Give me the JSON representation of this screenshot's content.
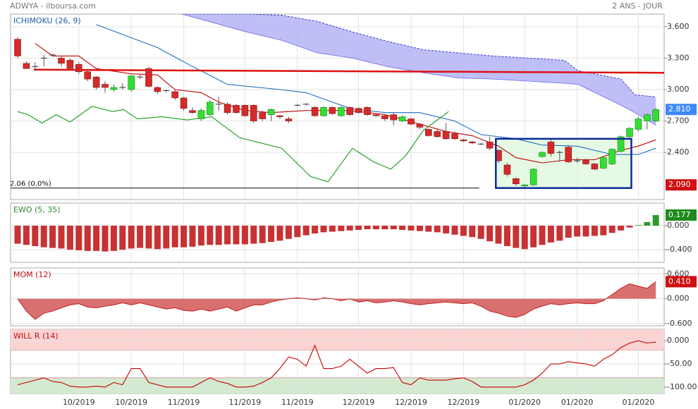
{
  "header": {
    "symbol": "ADWYA - ilboursa.com",
    "period": "2 ANS - JOUR"
  },
  "chart_data": [
    {
      "type": "candlestick",
      "title": "ICHIMOKU (26, 9)",
      "title_color": "#1f5fa8",
      "up_color": "#33dd33",
      "down_color": "#d42a2a",
      "ylim": [
        1.95,
        3.72
      ],
      "yticks": [
        {
          "value": 3.6,
          "label": "3.600"
        },
        {
          "value": 3.3,
          "label": "3.300"
        },
        {
          "value": 3.0,
          "label": "3.000"
        },
        {
          "value": 2.7,
          "label": "2.700"
        },
        {
          "value": 2.4,
          "label": "2.400"
        }
      ],
      "grid": true,
      "open": [
        3.48,
        3.25,
        3.22,
        3.3,
        3.33,
        3.3,
        3.28,
        3.24,
        3.17,
        3.12,
        3.05,
        3.0,
        3.02,
        3.0,
        3.12,
        3.2,
        3.02,
        2.99,
        2.98,
        2.92,
        2.8,
        2.72,
        2.76,
        2.86,
        2.86,
        2.85,
        2.85,
        2.85,
        2.78,
        2.76,
        2.75,
        2.72,
        2.85,
        2.86,
        2.83,
        2.75,
        2.83,
        2.75,
        2.83,
        2.82,
        2.83,
        2.76,
        2.75,
        2.76,
        2.7,
        2.72,
        2.67,
        2.62,
        2.6,
        2.6,
        2.58,
        2.52,
        2.5,
        2.48,
        2.5,
        2.42,
        2.28,
        2.15,
        2.08,
        2.09,
        2.36,
        2.5,
        2.4,
        2.45,
        2.32,
        2.33,
        2.29,
        2.25,
        2.29,
        2.41,
        2.55,
        2.62,
        2.7,
        2.7
      ],
      "close": [
        3.32,
        3.2,
        3.22,
        3.3,
        3.33,
        3.25,
        3.2,
        3.17,
        3.1,
        3.02,
        3.02,
        3.02,
        3.02,
        3.13,
        3.12,
        3.03,
        2.98,
        2.99,
        2.92,
        2.82,
        2.78,
        2.8,
        2.88,
        2.86,
        2.78,
        2.78,
        2.75,
        2.7,
        2.72,
        2.81,
        2.74,
        2.7,
        2.85,
        2.86,
        2.75,
        2.83,
        2.77,
        2.83,
        2.76,
        2.78,
        2.76,
        2.75,
        2.72,
        2.71,
        2.74,
        2.67,
        2.64,
        2.56,
        2.55,
        2.53,
        2.53,
        2.51,
        2.49,
        2.48,
        2.44,
        2.32,
        2.19,
        2.1,
        2.09,
        2.24,
        2.4,
        2.39,
        2.4,
        2.31,
        2.32,
        2.29,
        2.24,
        2.35,
        2.43,
        2.55,
        2.63,
        2.72,
        2.76,
        2.81
      ],
      "high": [
        3.5,
        3.27,
        3.26,
        3.33,
        3.34,
        3.32,
        3.3,
        3.26,
        3.18,
        3.13,
        3.08,
        3.05,
        3.06,
        3.14,
        3.14,
        3.22,
        3.03,
        3.0,
        3.0,
        2.93,
        2.83,
        2.82,
        2.9,
        2.93,
        2.88,
        2.86,
        2.86,
        2.86,
        2.8,
        2.82,
        2.76,
        2.74,
        2.86,
        2.87,
        2.84,
        2.84,
        2.84,
        2.84,
        2.84,
        2.83,
        2.84,
        2.77,
        2.76,
        2.78,
        2.75,
        2.73,
        2.68,
        2.63,
        2.62,
        2.68,
        2.6,
        2.53,
        2.51,
        2.49,
        2.55,
        2.43,
        2.3,
        2.16,
        2.1,
        2.25,
        2.41,
        2.53,
        2.42,
        2.47,
        2.35,
        2.34,
        2.3,
        2.36,
        2.44,
        2.56,
        2.64,
        2.74,
        2.77,
        2.82
      ],
      "low": [
        3.3,
        3.2,
        3.2,
        3.22,
        3.32,
        3.22,
        3.18,
        3.15,
        3.08,
        3.0,
        2.97,
        2.98,
        3.0,
        2.98,
        3.1,
        3.02,
        2.96,
        2.97,
        2.9,
        2.8,
        2.77,
        2.7,
        2.75,
        2.8,
        2.76,
        2.77,
        2.74,
        2.68,
        2.7,
        2.7,
        2.72,
        2.68,
        2.84,
        2.85,
        2.74,
        2.74,
        2.76,
        2.74,
        2.75,
        2.77,
        2.75,
        2.74,
        2.7,
        2.66,
        2.69,
        2.66,
        2.62,
        2.55,
        2.54,
        2.52,
        2.52,
        2.5,
        2.48,
        2.47,
        2.42,
        2.3,
        2.17,
        2.08,
        2.06,
        2.08,
        2.35,
        2.36,
        2.31,
        2.3,
        2.3,
        2.28,
        2.23,
        2.24,
        2.28,
        2.4,
        2.54,
        2.6,
        2.62,
        2.69
      ],
      "cloud": {
        "color": "#a9a9f5",
        "edge_color": "#3a3ad0",
        "x": [
          18.8,
          26.2,
          30.2,
          34.3,
          38.3,
          42.3,
          46.4,
          50.4,
          54.4,
          58.5,
          62.5,
          64.1,
          69,
          70.6,
          73
        ],
        "upper": [
          3.72,
          3.72,
          3.71,
          3.65,
          3.55,
          3.46,
          3.38,
          3.35,
          3.32,
          3.3,
          3.28,
          3.18,
          3.1,
          2.95,
          2.93
        ],
        "lower": [
          3.72,
          3.55,
          3.47,
          3.35,
          3.3,
          3.22,
          3.16,
          3.11,
          3.1,
          3.08,
          3.06,
          3.05,
          2.85,
          2.78,
          2.66
        ]
      },
      "lines": [
        {
          "color": "#c00000",
          "x": [
            2,
            4,
            7,
            9,
            13,
            16,
            18,
            21,
            23,
            26,
            29,
            33,
            38,
            42,
            46,
            49,
            52,
            55,
            57,
            60,
            63,
            66,
            69,
            71,
            73
          ],
          "values": [
            3.44,
            3.32,
            3.32,
            3.2,
            3.15,
            3.14,
            3.0,
            2.97,
            2.88,
            2.8,
            2.78,
            2.8,
            2.8,
            2.76,
            2.67,
            2.6,
            2.56,
            2.46,
            2.35,
            2.3,
            2.33,
            2.33,
            2.42,
            2.46,
            2.52
          ]
        },
        {
          "color": "#1f6fbf",
          "x": [
            9,
            16,
            20,
            24,
            30,
            33,
            38,
            42,
            46,
            50,
            53,
            57,
            60,
            64,
            68,
            71,
            73
          ],
          "values": [
            3.62,
            3.4,
            3.22,
            3.05,
            3.0,
            2.97,
            2.82,
            2.78,
            2.78,
            2.7,
            2.57,
            2.53,
            2.47,
            2.46,
            2.38,
            2.38,
            2.44
          ]
        },
        {
          "color": "#1a9a1a",
          "x": [
            0,
            1.2,
            2.8,
            4.4,
            6.0,
            8.5,
            10.9,
            12.1,
            13.7,
            16.5,
            19.4,
            22.2,
            25.4,
            30.2,
            33.5,
            35.5,
            38.3,
            40.7,
            42.7,
            44.4,
            46.4,
            49.3
          ],
          "values": [
            2.79,
            2.76,
            2.68,
            2.76,
            2.69,
            2.84,
            2.79,
            2.81,
            2.72,
            2.74,
            2.71,
            2.74,
            2.54,
            2.44,
            2.17,
            2.12,
            2.44,
            2.31,
            2.24,
            2.37,
            2.61,
            2.79
          ]
        }
      ],
      "trendline": {
        "color": "#e01010",
        "x": [
          1.85,
          74
        ],
        "values": [
          3.19,
          3.16
        ]
      },
      "hline": {
        "value": 2.06,
        "label": "2.06 (0.0%)",
        "x": [
          -0.8,
          52.8
        ]
      },
      "box": {
        "x": [
          54.7,
          70.2
        ],
        "y": [
          2.06,
          2.53
        ],
        "color": "#0a2a9a",
        "fill": "#dff7df"
      },
      "tags": [
        {
          "value": 2.81,
          "label": "2.810",
          "color": "#3d8af7"
        },
        {
          "value": 2.09,
          "label": "2.090",
          "color": "#d01010"
        }
      ]
    },
    {
      "type": "histogram_osc",
      "title": "EWO (5, 35)",
      "title_color": "#2a8a2a",
      "up_color": "#2e9a2e",
      "down_color": "#c83232",
      "ylim": [
        -0.61,
        0.376
      ],
      "yticks": [
        {
          "value": 0,
          "label": "0.000"
        },
        {
          "value": -0.4,
          "label": "-0.400"
        }
      ],
      "grid": true,
      "values": [
        -0.3,
        -0.32,
        -0.34,
        -0.36,
        -0.37,
        -0.38,
        -0.4,
        -0.41,
        -0.42,
        -0.42,
        -0.43,
        -0.42,
        -0.4,
        -0.38,
        -0.37,
        -0.38,
        -0.39,
        -0.38,
        -0.36,
        -0.36,
        -0.35,
        -0.33,
        -0.32,
        -0.32,
        -0.31,
        -0.31,
        -0.31,
        -0.3,
        -0.29,
        -0.27,
        -0.25,
        -0.22,
        -0.19,
        -0.16,
        -0.13,
        -0.11,
        -0.1,
        -0.09,
        -0.08,
        -0.07,
        -0.06,
        -0.06,
        -0.06,
        -0.06,
        -0.07,
        -0.08,
        -0.09,
        -0.1,
        -0.11,
        -0.13,
        -0.15,
        -0.17,
        -0.19,
        -0.22,
        -0.26,
        -0.3,
        -0.34,
        -0.37,
        -0.39,
        -0.36,
        -0.32,
        -0.28,
        -0.25,
        -0.2,
        -0.18,
        -0.18,
        -0.17,
        -0.16,
        -0.12,
        -0.08,
        -0.03,
        0.01,
        0.06,
        0.177
      ],
      "tags": [
        {
          "value": 0.177,
          "label": "0.177",
          "color": "#1e8a1e"
        }
      ]
    },
    {
      "type": "area",
      "title": "MOM (12)",
      "title_color": "#c01010",
      "color": "#d97070",
      "line_color": "#c02020",
      "ylim": [
        -0.653,
        0.741
      ],
      "yticks": [
        {
          "value": 0.6,
          "label": "0.600"
        },
        {
          "value": 0,
          "label": "0.000"
        },
        {
          "value": -0.6,
          "label": "-0.600"
        }
      ],
      "grid": true,
      "values": [
        0.0,
        -0.3,
        -0.5,
        -0.35,
        -0.3,
        -0.22,
        -0.15,
        -0.12,
        -0.2,
        -0.22,
        -0.18,
        -0.15,
        -0.1,
        -0.15,
        -0.1,
        -0.15,
        -0.2,
        -0.25,
        -0.22,
        -0.28,
        -0.3,
        -0.25,
        -0.3,
        -0.25,
        -0.2,
        -0.3,
        -0.22,
        -0.15,
        -0.15,
        -0.08,
        -0.03,
        0.0,
        0.02,
        0.0,
        -0.03,
        0.02,
        0.0,
        -0.05,
        0.0,
        -0.08,
        -0.05,
        -0.1,
        -0.08,
        -0.05,
        -0.08,
        -0.12,
        -0.15,
        -0.12,
        -0.1,
        -0.08,
        -0.1,
        -0.12,
        -0.1,
        -0.18,
        -0.3,
        -0.35,
        -0.42,
        -0.45,
        -0.38,
        -0.25,
        -0.18,
        -0.12,
        -0.15,
        -0.12,
        -0.1,
        -0.12,
        -0.12,
        -0.05,
        0.1,
        0.25,
        0.36,
        0.3,
        0.25,
        0.41
      ],
      "tags": [
        {
          "value": 0.41,
          "label": "0.410",
          "color": "#d01010"
        }
      ]
    },
    {
      "type": "line",
      "title": "WILL R (14)",
      "title_color": "#c01010",
      "color": "#c80000",
      "ylim": [
        -113.8,
        24.6
      ],
      "yticks": [
        {
          "value": 0,
          "label": "0.000"
        },
        {
          "value": -50,
          "label": "-50.00"
        },
        {
          "value": -100,
          "label": "-100.00"
        }
      ],
      "grid": true,
      "bands": [
        {
          "above": -20,
          "color": "#fbd3d3"
        },
        {
          "below": -80,
          "color": "#d3ead0"
        }
      ],
      "values": [
        -95,
        -90,
        -85,
        -80,
        -88,
        -90,
        -98,
        -100,
        -100,
        -98,
        -100,
        -90,
        -95,
        -60,
        -60,
        -90,
        -95,
        -100,
        -100,
        -100,
        -100,
        -90,
        -80,
        -88,
        -92,
        -100,
        -100,
        -98,
        -90,
        -80,
        -60,
        -35,
        -40,
        -55,
        -10,
        -60,
        -60,
        -55,
        -40,
        -55,
        -70,
        -60,
        -60,
        -58,
        -90,
        -95,
        -80,
        -85,
        -85,
        -85,
        -82,
        -80,
        -88,
        -100,
        -100,
        -100,
        -100,
        -100,
        -95,
        -85,
        -70,
        -50,
        -50,
        -45,
        -48,
        -50,
        -55,
        -40,
        -30,
        -15,
        -5,
        0,
        -5,
        -3
      ],
      "categories": [
        null,
        null,
        null,
        null,
        null,
        null,
        null,
        "10/2019",
        null,
        null,
        null,
        null,
        null,
        "10/2019",
        null,
        null,
        null,
        null,
        null,
        "11/2019",
        null,
        null,
        null,
        null,
        null,
        null,
        "11/2019",
        null,
        null,
        null,
        null,
        null,
        "11/2019",
        null,
        null,
        null,
        null,
        null,
        null,
        "12/2019",
        null,
        null,
        null,
        null,
        null,
        "12/2019",
        null,
        null,
        null,
        null,
        null,
        "12/2019",
        null,
        null,
        null,
        null,
        null,
        null,
        "01/2020",
        null,
        null,
        null,
        null,
        null,
        "01/2020",
        null,
        null,
        null,
        null,
        null,
        null,
        "01/2020",
        null,
        null
      ]
    }
  ]
}
